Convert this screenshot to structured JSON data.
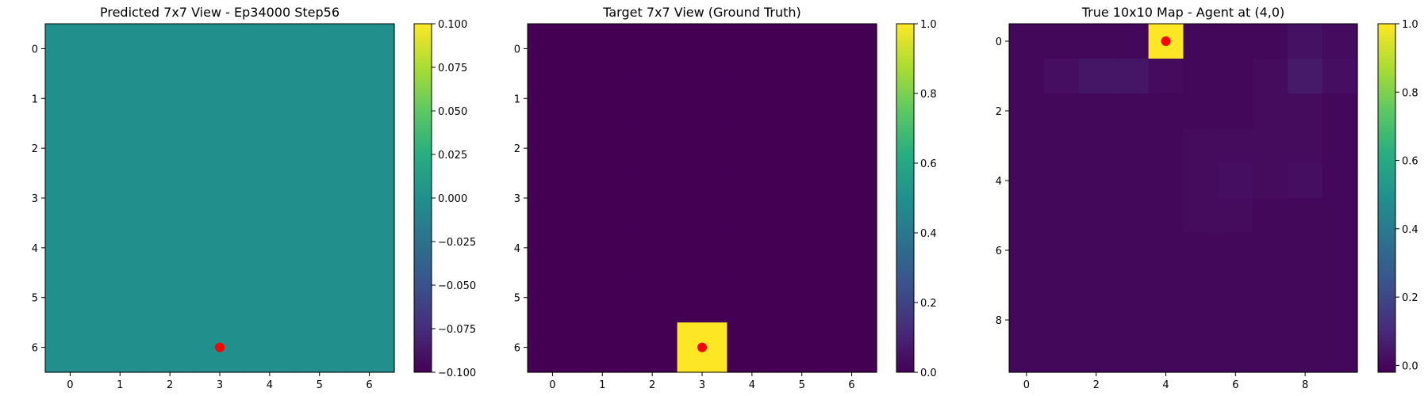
{
  "chart_data": [
    {
      "type": "heatmap",
      "title": "Predicted 7x7 View - Ep34000 Step56",
      "rows": 7,
      "cols": 7,
      "values": [
        [
          0,
          0,
          0,
          0,
          0,
          0,
          0
        ],
        [
          0,
          0,
          0,
          0,
          0,
          0,
          0
        ],
        [
          0,
          0,
          0,
          0,
          0,
          0,
          0
        ],
        [
          0,
          0,
          0,
          0,
          0,
          0,
          0
        ],
        [
          0,
          0,
          0,
          0,
          0,
          0,
          0
        ],
        [
          0,
          0,
          0,
          0,
          0,
          0,
          0
        ],
        [
          0,
          0,
          0,
          0,
          0,
          0,
          0
        ]
      ],
      "vmin": -0.1,
      "vmax": 0.1,
      "x_ticks": [
        0,
        1,
        2,
        3,
        4,
        5,
        6
      ],
      "y_ticks": [
        0,
        1,
        2,
        3,
        4,
        5,
        6
      ],
      "colorbar_ticks": [
        0.1,
        0.075,
        0.05,
        0.025,
        0.0,
        -0.025,
        -0.05,
        -0.075,
        -0.1
      ],
      "colorbar_labels": [
        "0.100",
        "0.075",
        "0.050",
        "0.025",
        "0.000",
        "−0.025",
        "−0.050",
        "−0.075",
        "−0.100"
      ],
      "marker": {
        "x": 3,
        "y": 6,
        "color": "#ff0000"
      },
      "colormap": "viridis"
    },
    {
      "type": "heatmap",
      "title": "Target 7x7 View (Ground Truth)",
      "rows": 7,
      "cols": 7,
      "values": [
        [
          0,
          0,
          0,
          0,
          0,
          0,
          0
        ],
        [
          0,
          0,
          0,
          0,
          0,
          0,
          0
        ],
        [
          0,
          0,
          0,
          0,
          0,
          0,
          0
        ],
        [
          0,
          0,
          0,
          0,
          0,
          0,
          0
        ],
        [
          0,
          0,
          0,
          0,
          0,
          0,
          0
        ],
        [
          0,
          0,
          0,
          0,
          0,
          0,
          0
        ],
        [
          0,
          0,
          0,
          1,
          0,
          0,
          0
        ]
      ],
      "vmin": 0.0,
      "vmax": 1.0,
      "x_ticks": [
        0,
        1,
        2,
        3,
        4,
        5,
        6
      ],
      "y_ticks": [
        0,
        1,
        2,
        3,
        4,
        5,
        6
      ],
      "colorbar_ticks": [
        1.0,
        0.8,
        0.6,
        0.4,
        0.2,
        0.0
      ],
      "colorbar_labels": [
        "1.0",
        "0.8",
        "0.6",
        "0.4",
        "0.2",
        "0.0"
      ],
      "marker": {
        "x": 3,
        "y": 6,
        "color": "#ff0000"
      },
      "colormap": "viridis"
    },
    {
      "type": "heatmap",
      "title": "True 10x10 Map - Agent at (4,0)",
      "rows": 10,
      "cols": 10,
      "values": [
        [
          0.0,
          0.0,
          0.0,
          0.0,
          1.0,
          0.0,
          0.0,
          0.0,
          0.03,
          0.01
        ],
        [
          0.0,
          0.02,
          0.04,
          0.04,
          0.01,
          0.0,
          0.0,
          0.01,
          0.05,
          0.02
        ],
        [
          0.0,
          0.0,
          0.0,
          0.0,
          0.0,
          0.0,
          0.0,
          0.01,
          0.01,
          0.0
        ],
        [
          0.0,
          0.0,
          0.0,
          0.0,
          0.0,
          0.01,
          0.01,
          0.01,
          0.01,
          0.0
        ],
        [
          0.0,
          0.0,
          0.0,
          0.0,
          0.0,
          0.01,
          0.02,
          0.01,
          0.02,
          0.0
        ],
        [
          0.0,
          0.0,
          0.0,
          0.0,
          0.0,
          0.01,
          0.01,
          0.0,
          0.0,
          0.0
        ],
        [
          0.0,
          0.0,
          0.0,
          0.0,
          0.0,
          0.0,
          0.0,
          0.0,
          0.0,
          0.0
        ],
        [
          0.0,
          0.0,
          0.0,
          0.0,
          0.0,
          0.0,
          0.0,
          0.0,
          0.0,
          0.0
        ],
        [
          0.0,
          0.0,
          0.0,
          0.0,
          0.0,
          0.0,
          0.0,
          0.0,
          0.0,
          0.0
        ],
        [
          0.0,
          0.0,
          0.0,
          0.0,
          0.0,
          0.0,
          0.0,
          0.0,
          0.0,
          0.0
        ]
      ],
      "vmin": -0.02,
      "vmax": 1.0,
      "x_ticks": [
        0,
        2,
        4,
        6,
        8
      ],
      "y_ticks": [
        0,
        2,
        4,
        6,
        8
      ],
      "colorbar_ticks": [
        1.0,
        0.8,
        0.6,
        0.4,
        0.2,
        0.0
      ],
      "colorbar_labels": [
        "1.0",
        "0.8",
        "0.6",
        "0.4",
        "0.2",
        "0.0"
      ],
      "marker": {
        "x": 4,
        "y": 0,
        "color": "#ff0000"
      },
      "colormap": "viridis"
    }
  ]
}
